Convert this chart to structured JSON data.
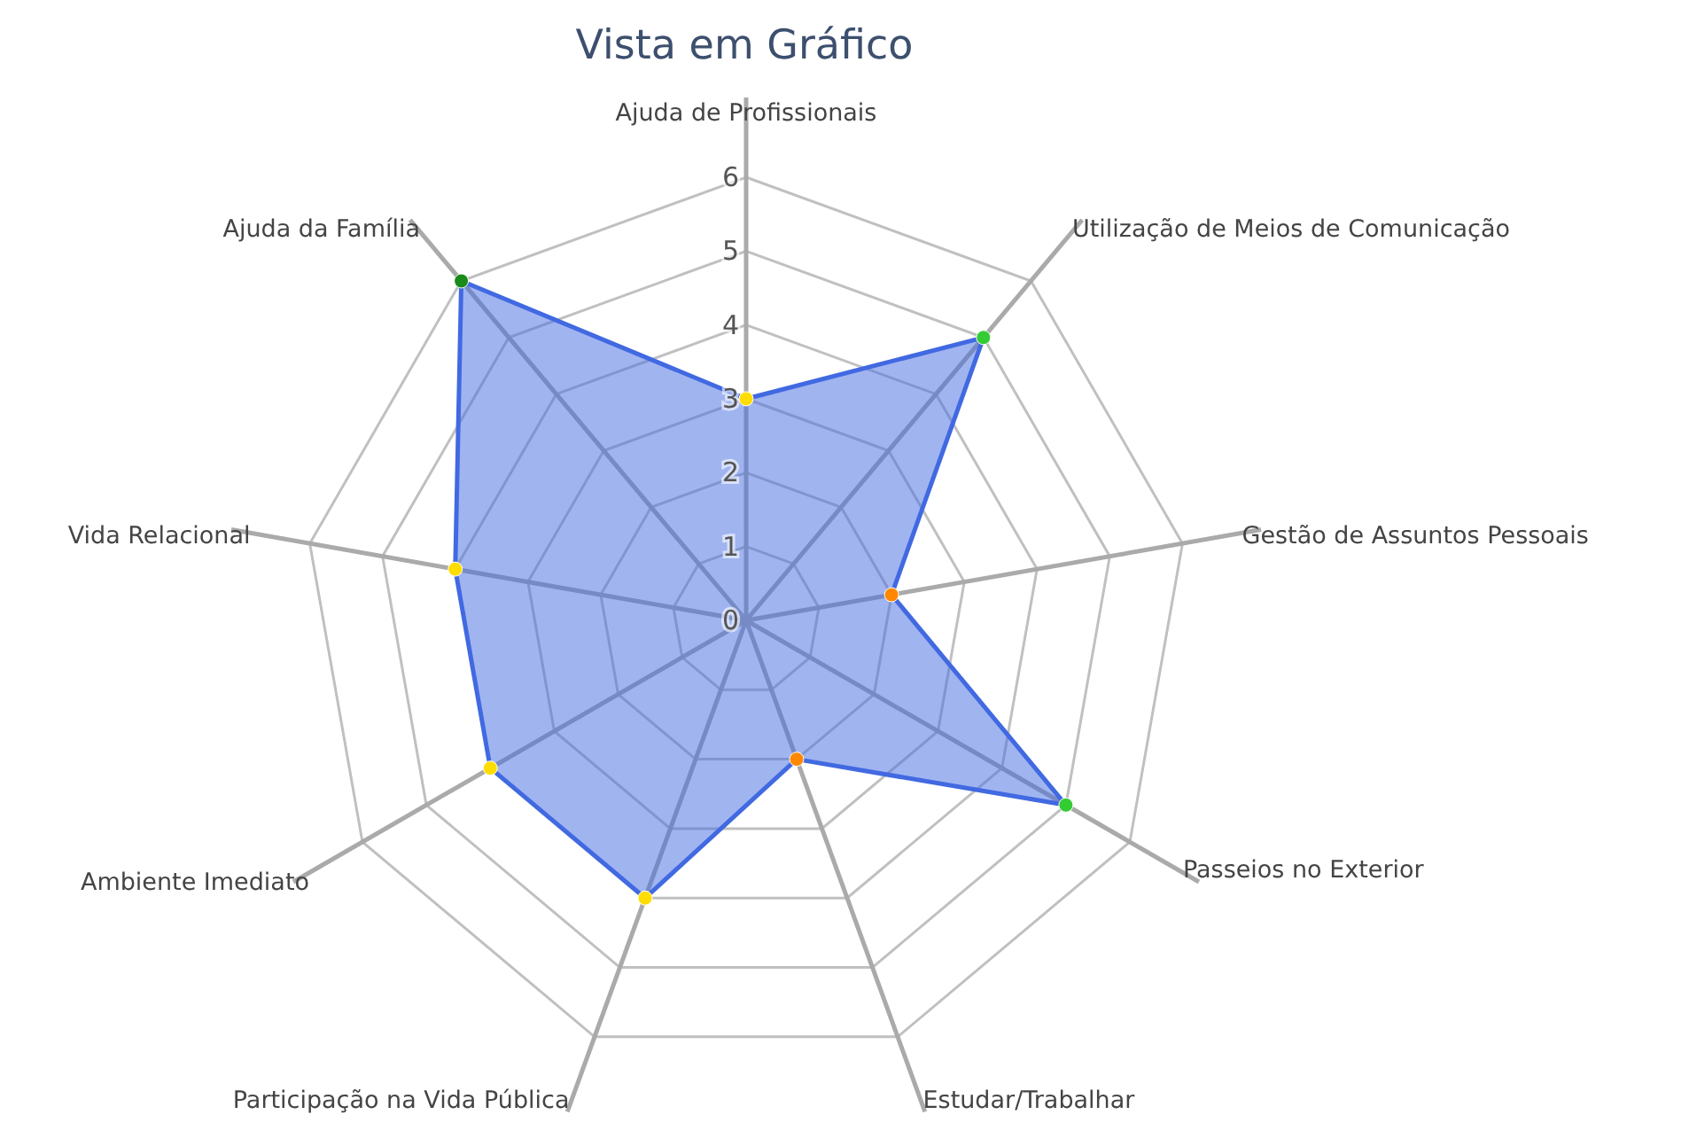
{
  "chart_data": {
    "type": "radar",
    "title": "Vista em Gráfico",
    "categories": [
      "Ajuda de Profissionais",
      "Utilização de Meios de Comunicação",
      "Gestão de Assuntos Pessoais",
      "Passeios no Exterior",
      "Estudar/Trabalhar",
      "Participação na Vida Pública",
      "Ambiente Imediato",
      "Vida Relacional",
      "Ajuda da Família"
    ],
    "series": [
      {
        "color": "#4169e1",
        "values": [
          3,
          5,
          2,
          5,
          2,
          4,
          4,
          4,
          6
        ],
        "colors": [
          "#ffdd00",
          "#33cc33",
          "#ff8800",
          "#33cc33",
          "#ff8800",
          "#ffdd00",
          "#ffdd00",
          "#ffdd00",
          "#1a8a1a"
        ]
      }
    ],
    "ylim": [
      0,
      6
    ],
    "yticks": [
      0,
      1,
      2,
      3,
      4,
      5,
      6
    ],
    "grid": true,
    "marker": "circle"
  }
}
